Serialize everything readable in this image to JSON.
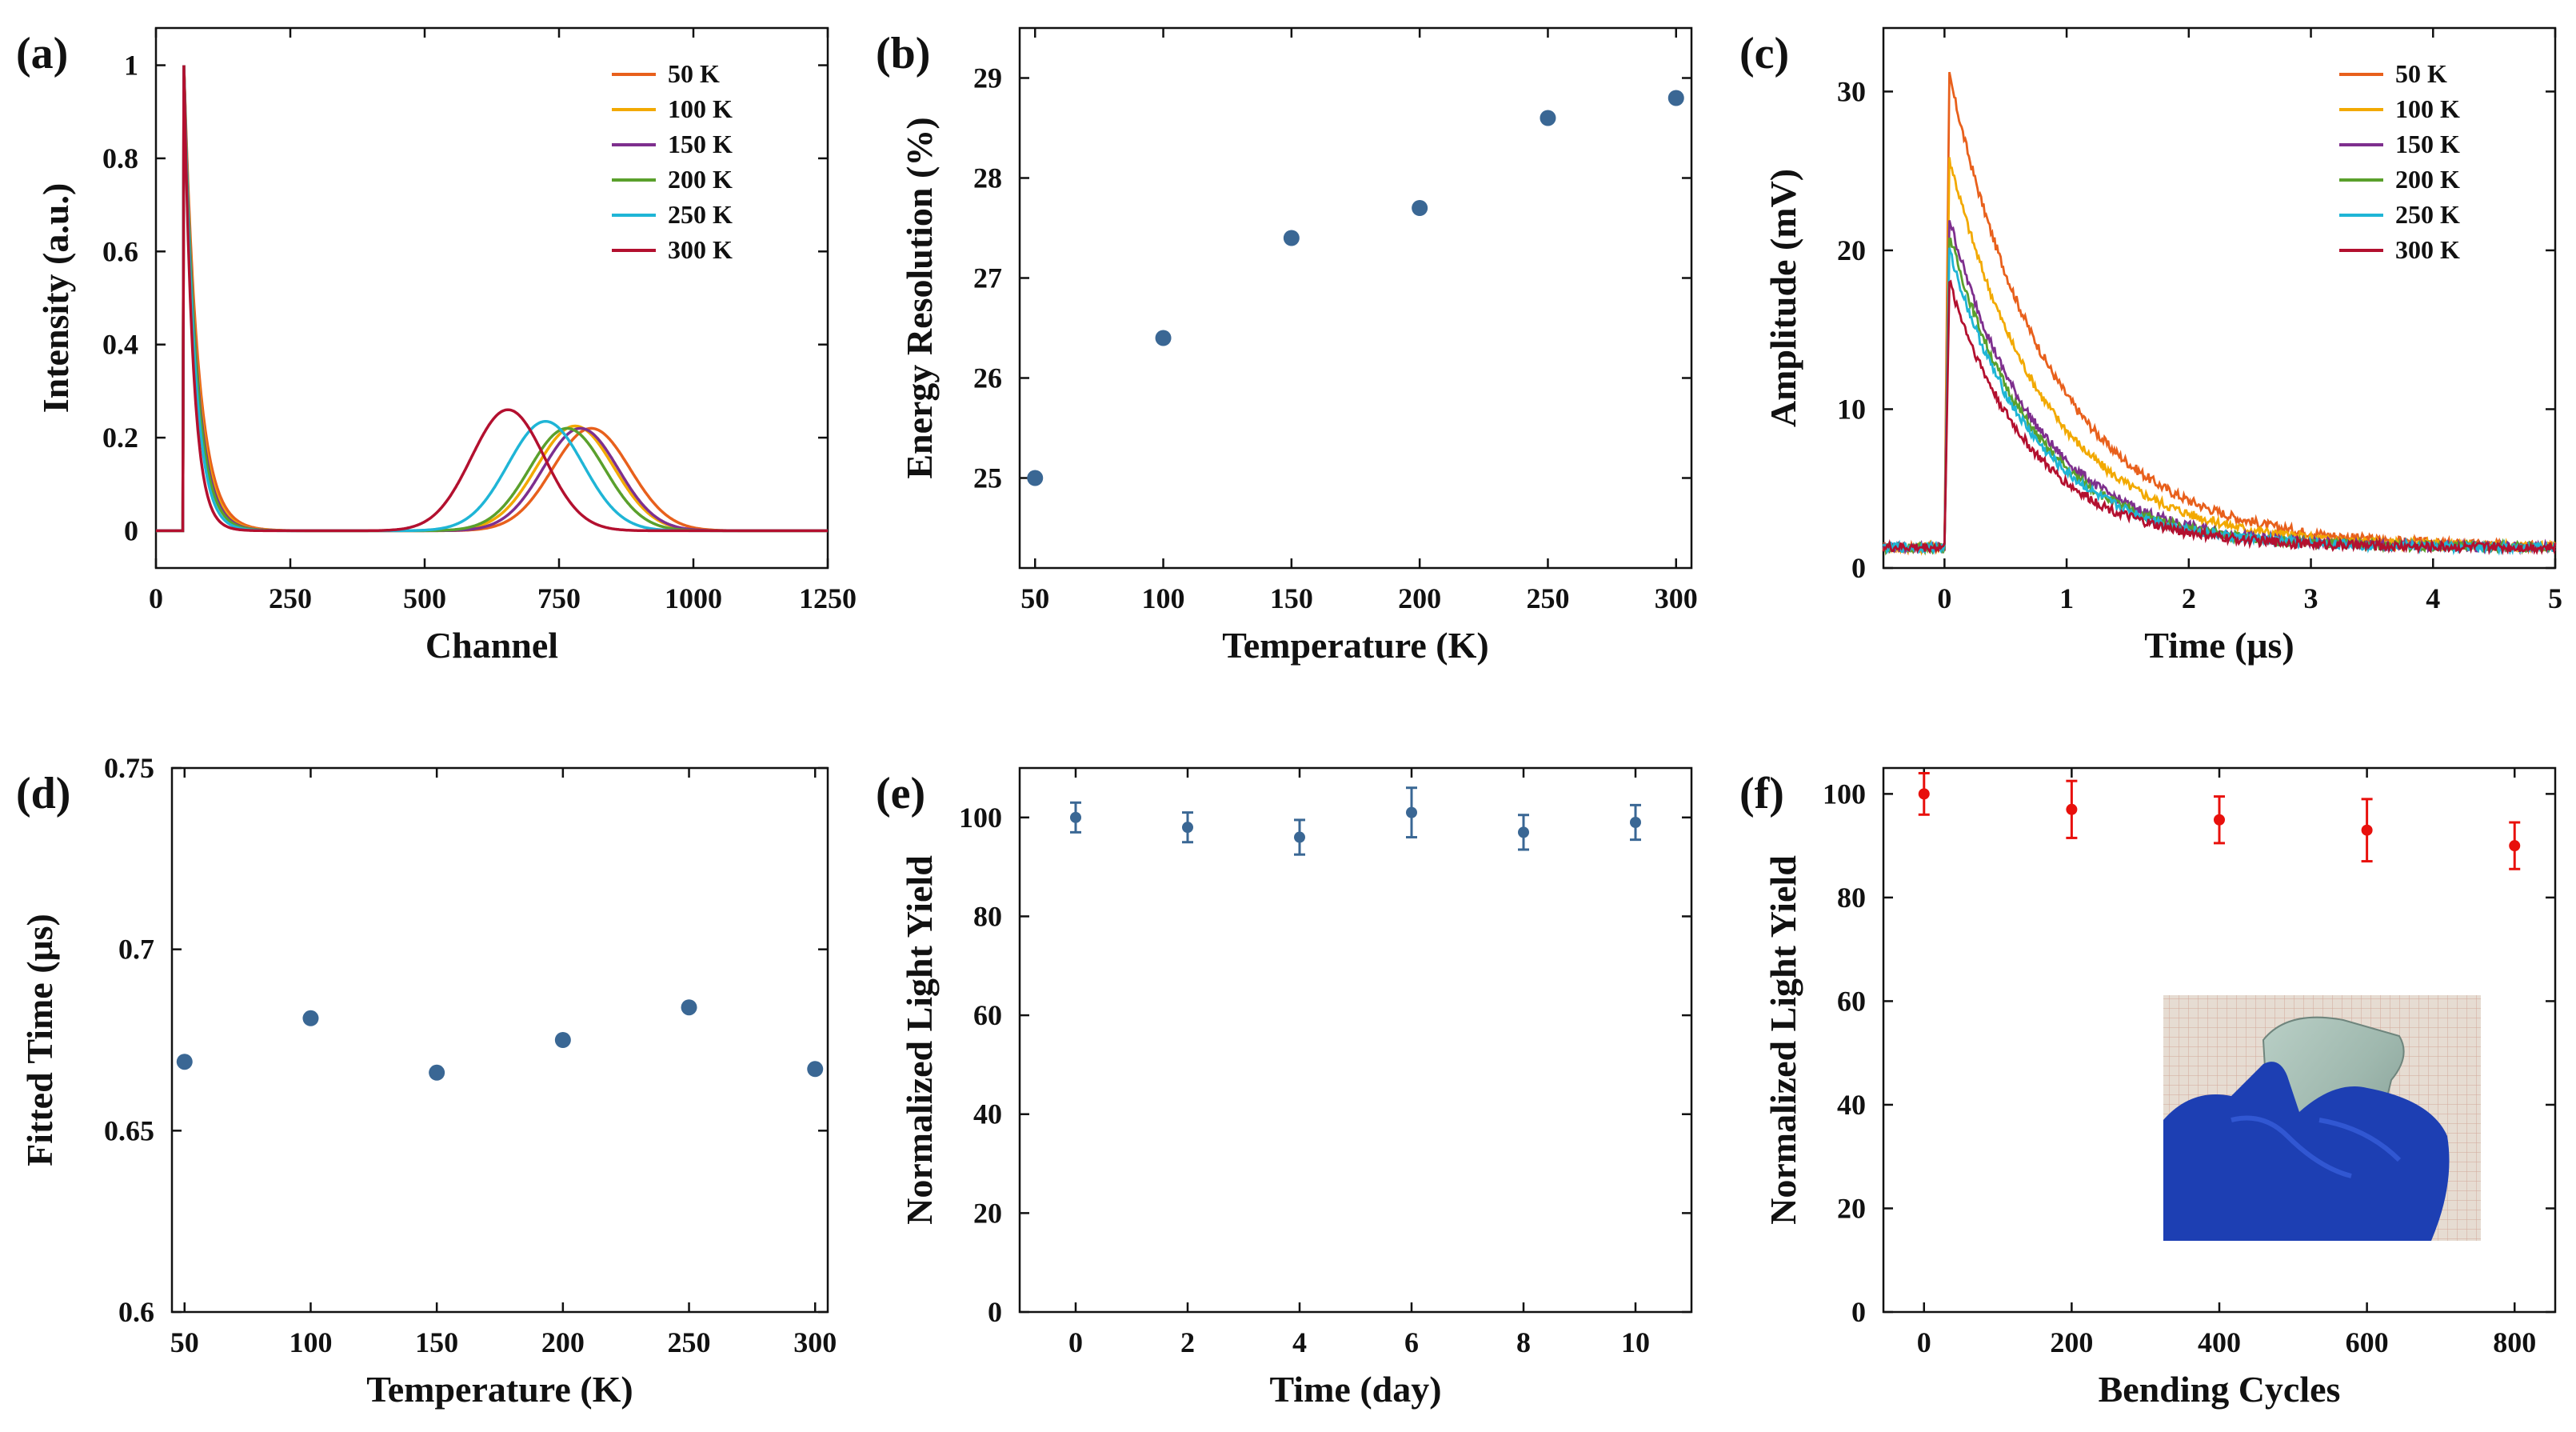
{
  "chart_data": [
    {
      "panel": "(a)",
      "type": "line",
      "xlabel": "Channel",
      "ylabel": "Intensity (a.u.)",
      "xlim": [
        0,
        1250
      ],
      "ylim": [
        -0.08,
        1.08
      ],
      "xticks": [
        0,
        250,
        500,
        750,
        1000,
        1250
      ],
      "yticks": [
        0,
        0.2,
        0.4,
        0.6,
        0.8,
        1
      ],
      "ytick_labels": [
        "0",
        "0.2",
        "0.4",
        "0.6",
        "0.8",
        "1"
      ],
      "legend": "top-right",
      "series": [
        {
          "name": "50 K",
          "color": "#e8601c",
          "peak_channel": 810,
          "peak_height": 0.22,
          "sigma": 72
        },
        {
          "name": "100 K",
          "color": "#f2a900",
          "peak_channel": 780,
          "peak_height": 0.225,
          "sigma": 72
        },
        {
          "name": "150 K",
          "color": "#7e2f8e",
          "peak_channel": 790,
          "peak_height": 0.22,
          "sigma": 70
        },
        {
          "name": "200 K",
          "color": "#5aa02c",
          "peak_channel": 765,
          "peak_height": 0.22,
          "sigma": 70
        },
        {
          "name": "250 K",
          "color": "#1fb5d6",
          "peak_channel": 725,
          "peak_height": 0.235,
          "sigma": 70
        },
        {
          "name": "300 K",
          "color": "#b3102f",
          "peak_channel": 655,
          "peak_height": 0.26,
          "sigma": 68
        }
      ]
    },
    {
      "panel": "(b)",
      "type": "scatter",
      "xlabel": "Temperature (K)",
      "ylabel": "Energy Resolution (%)",
      "xlim": [
        44,
        306
      ],
      "ylim": [
        24.1,
        29.5
      ],
      "xticks": [
        50,
        100,
        150,
        200,
        250,
        300
      ],
      "yticks": [
        25,
        26,
        27,
        28,
        29
      ],
      "color": "#3a6794",
      "x": [
        50,
        100,
        150,
        200,
        250,
        300
      ],
      "y": [
        25.0,
        26.4,
        27.4,
        27.7,
        28.6,
        28.8
      ]
    },
    {
      "panel": "(c)",
      "type": "line",
      "xlabel": "Time (μs)",
      "ylabel": "Amplitude (mV)",
      "xlim": [
        -0.5,
        5
      ],
      "ylim": [
        0,
        34
      ],
      "xticks": [
        0,
        1,
        2,
        3,
        4,
        5
      ],
      "yticks": [
        0,
        10,
        20,
        30
      ],
      "legend": "top-right",
      "baseline_mV": 1.3,
      "series": [
        {
          "name": "50 K",
          "color": "#e8601c",
          "peak_mV": 31,
          "decay_us": 0.85
        },
        {
          "name": "100 K",
          "color": "#f2a900",
          "peak_mV": 25.8,
          "decay_us": 0.8
        },
        {
          "name": "150 K",
          "color": "#7e2f8e",
          "peak_mV": 22,
          "decay_us": 0.72
        },
        {
          "name": "200 K",
          "color": "#5aa02c",
          "peak_mV": 21,
          "decay_us": 0.7
        },
        {
          "name": "250 K",
          "color": "#1fb5d6",
          "peak_mV": 20,
          "decay_us": 0.7
        },
        {
          "name": "300 K",
          "color": "#b3102f",
          "peak_mV": 18,
          "decay_us": 0.68
        }
      ]
    },
    {
      "panel": "(d)",
      "type": "scatter",
      "xlabel": "Temperature (K)",
      "ylabel": "Fitted Time (μs)",
      "xlim": [
        45,
        305
      ],
      "ylim": [
        0.6,
        0.75
      ],
      "xticks": [
        50,
        100,
        150,
        200,
        250,
        300
      ],
      "yticks": [
        0.6,
        0.65,
        0.7,
        0.75
      ],
      "ytick_labels": [
        "0.6",
        "0.65",
        "0.7",
        "0.75"
      ],
      "color": "#3a6794",
      "x": [
        50,
        100,
        150,
        200,
        250,
        300
      ],
      "y": [
        0.669,
        0.681,
        0.666,
        0.675,
        0.684,
        0.667
      ]
    },
    {
      "panel": "(e)",
      "type": "scatter",
      "xlabel": "Time (day)",
      "ylabel": "Normalized Light Yield",
      "xlim": [
        -1,
        11
      ],
      "ylim": [
        0,
        110
      ],
      "xticks": [
        0,
        2,
        4,
        6,
        8,
        10
      ],
      "yticks": [
        0,
        20,
        40,
        60,
        80,
        100
      ],
      "color": "#3a6794",
      "x": [
        0,
        2,
        4,
        6,
        8,
        10
      ],
      "y": [
        100,
        98,
        96,
        101,
        97,
        99
      ],
      "yerr": [
        3,
        3,
        3.5,
        5,
        3.5,
        3.5
      ]
    },
    {
      "panel": "(f)",
      "type": "scatter",
      "xlabel": "Bending Cycles",
      "ylabel": "Normalized Light Yield",
      "xlim": [
        -55,
        855
      ],
      "ylim": [
        0,
        105
      ],
      "xticks": [
        0,
        200,
        400,
        600,
        800
      ],
      "yticks": [
        0,
        20,
        40,
        60,
        80,
        100
      ],
      "color": "#e8100c",
      "x": [
        0,
        200,
        400,
        600,
        800
      ],
      "y": [
        100,
        97,
        95,
        93,
        90
      ],
      "yerr": [
        4,
        5.5,
        4.5,
        6,
        4.5
      ],
      "inset": "photo-gloved-hand-bending-film"
    }
  ]
}
